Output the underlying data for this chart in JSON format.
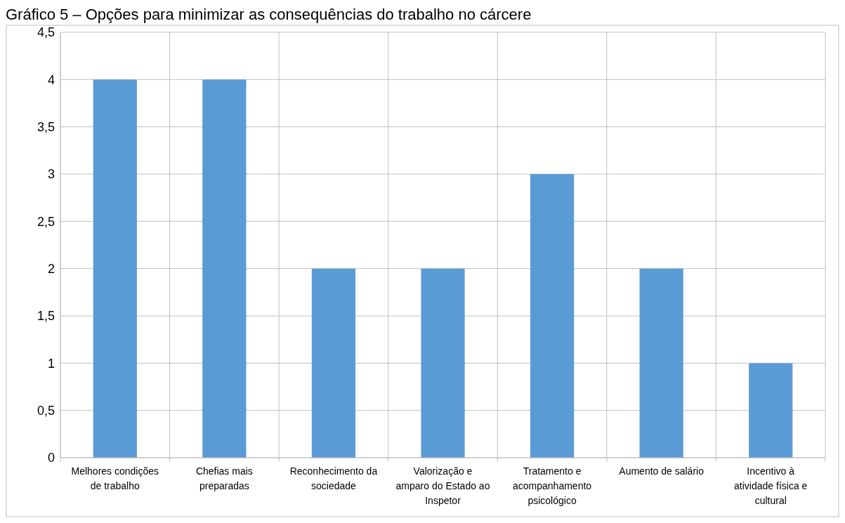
{
  "chart_data": {
    "type": "bar",
    "title": "Gráfico 5 – Opções para minimizar as consequências do trabalho no cárcere",
    "categories": [
      "Melhores condições de trabalho",
      "Chefias mais preparadas",
      "Reconhecimento da sociedade",
      "Valorização e amparo do Estado ao Inspetor",
      "Tratamento e acompanhamento psicológico",
      "Aumento de salário",
      "Incentivo à atividade física e cultural"
    ],
    "values": [
      4,
      4,
      2,
      2,
      3,
      2,
      1
    ],
    "color": "#5b9bd5",
    "ylim": [
      0,
      4.5
    ],
    "yticks": [
      {
        "value": 0,
        "label": "0"
      },
      {
        "value": 0.5,
        "label": "0,5"
      },
      {
        "value": 1,
        "label": "1"
      },
      {
        "value": 1.5,
        "label": "1,5"
      },
      {
        "value": 2,
        "label": "2"
      },
      {
        "value": 2.5,
        "label": "2,5"
      },
      {
        "value": 3,
        "label": "3"
      },
      {
        "value": 3.5,
        "label": "3,5"
      },
      {
        "value": 4,
        "label": "4"
      },
      {
        "value": 4.5,
        "label": "4,5"
      }
    ],
    "grid": true
  }
}
